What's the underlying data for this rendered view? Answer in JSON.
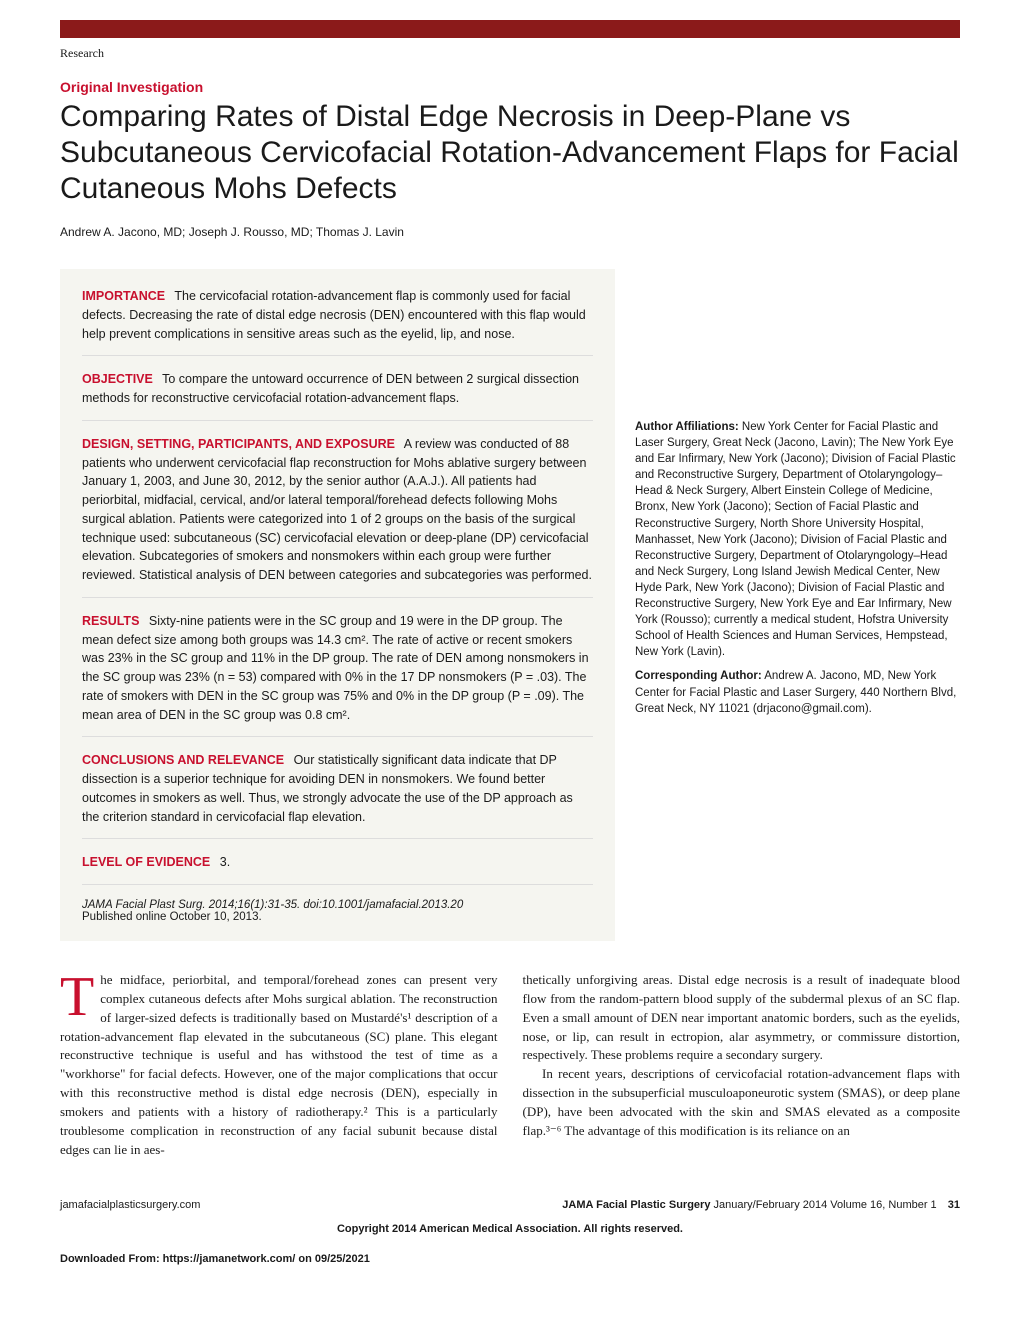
{
  "colors": {
    "accent": "#c8102e",
    "topbar": "#8b1a1a",
    "abstract_bg": "#f5f5f0"
  },
  "header": {
    "section": "Research",
    "investigation": "Original Investigation",
    "title": "Comparing Rates of Distal Edge Necrosis in Deep-Plane vs Subcutaneous Cervicofacial Rotation-Advancement Flaps for Facial Cutaneous Mohs Defects",
    "authors": "Andrew A. Jacono, MD; Joseph J. Rousso, MD; Thomas J. Lavin"
  },
  "abstract": {
    "importance": {
      "label": "IMPORTANCE",
      "text": "The cervicofacial rotation-advancement flap is commonly used for facial defects. Decreasing the rate of distal edge necrosis (DEN) encountered with this flap would help prevent complications in sensitive areas such as the eyelid, lip, and nose."
    },
    "objective": {
      "label": "OBJECTIVE",
      "text": "To compare the untoward occurrence of DEN between 2 surgical dissection methods for reconstructive cervicofacial rotation-advancement flaps."
    },
    "design": {
      "label": "DESIGN, SETTING, PARTICIPANTS, AND EXPOSURE",
      "text": "A review was conducted of 88 patients who underwent cervicofacial flap reconstruction for Mohs ablative surgery between January 1, 2003, and June 30, 2012, by the senior author (A.A.J.). All patients had periorbital, midfacial, cervical, and/or lateral temporal/forehead defects following Mohs surgical ablation. Patients were categorized into 1 of 2 groups on the basis of the surgical technique used: subcutaneous (SC) cervicofacial elevation or deep-plane (DP) cervicofacial elevation. Subcategories of smokers and nonsmokers within each group were further reviewed. Statistical analysis of DEN between categories and subcategories was performed."
    },
    "results": {
      "label": "RESULTS",
      "text": "Sixty-nine patients were in the SC group and 19 were in the DP group. The mean defect size among both groups was 14.3 cm². The rate of active or recent smokers was 23% in the SC group and 11% in the DP group. The rate of DEN among nonsmokers in the SC group was 23% (n = 53) compared with 0% in the 17 DP nonsmokers (P = .03). The rate of smokers with DEN in the SC group was 75% and 0% in the DP group (P = .09). The mean area of DEN in the SC group was 0.8 cm²."
    },
    "conclusions": {
      "label": "CONCLUSIONS AND RELEVANCE",
      "text": "Our statistically significant data indicate that DP dissection is a superior technique for avoiding DEN in nonsmokers. We found better outcomes in smokers as well. Thus, we strongly advocate the use of the DP approach as the criterion standard in cervicofacial flap elevation."
    },
    "evidence": {
      "label": "LEVEL OF EVIDENCE",
      "text": "3."
    },
    "citation": "JAMA Facial Plast Surg. 2014;16(1):31-35. doi:10.1001/jamafacial.2013.20",
    "published": "Published online October 10, 2013."
  },
  "sidebar": {
    "affiliations_label": "Author Affiliations:",
    "affiliations": "New York Center for Facial Plastic and Laser Surgery, Great Neck (Jacono, Lavin); The New York Eye and Ear Infirmary, New York (Jacono); Division of Facial Plastic and Reconstructive Surgery, Department of Otolaryngology–Head & Neck Surgery, Albert Einstein College of Medicine, Bronx, New York (Jacono); Section of Facial Plastic and Reconstructive Surgery, North Shore University Hospital, Manhasset, New York (Jacono); Division of Facial Plastic and Reconstructive Surgery, Department of Otolaryngology–Head and Neck Surgery, Long Island Jewish Medical Center, New Hyde Park, New York (Jacono); Division of Facial Plastic and Reconstructive Surgery, New York Eye and Ear Infirmary, New York (Rousso); currently a medical student, Hofstra University School of Health Sciences and Human Services, Hempstead, New York (Lavin).",
    "corresponding_label": "Corresponding Author:",
    "corresponding": "Andrew A. Jacono, MD, New York Center for Facial Plastic and Laser Surgery, 440 Northern Blvd, Great Neck, NY 11021 (drjacono@gmail.com)."
  },
  "body": {
    "col1_p1": "he midface, periorbital, and temporal/forehead zones can present very complex cutaneous defects after Mohs surgical ablation. The reconstruction of larger-sized defects is traditionally based on Mustardé's¹ description of a rotation-advancement flap elevated in the subcutaneous (SC) plane. This elegant reconstructive technique is useful and has withstood the test of time as a \"workhorse\" for facial defects. However, one of the major complications that occur with this reconstructive method is distal edge necrosis (DEN), especially in smokers and patients with a history of radiotherapy.² This is a particularly troublesome complication in reconstruction of any facial subunit because distal edges can lie in aes-",
    "col2_p1": "thetically unforgiving areas. Distal edge necrosis is a result of inadequate blood flow from the random-pattern blood supply of the subdermal plexus of an SC flap. Even a small amount of DEN near important anatomic borders, such as the eyelids, nose, or lip, can result in ectropion, alar asymmetry, or commissure distortion, respectively. These problems require a secondary surgery.",
    "col2_p2": "In recent years, descriptions of cervicofacial rotation-advancement flaps with dissection in the subsuperficial musculoaponeurotic system (SMAS), or deep plane (DP), have been advocated with the skin and SMAS elevated as a composite flap.³⁻⁶ The advantage of this modification is its reliance on an"
  },
  "footer": {
    "left": "jamafacialplasticsurgery.com",
    "journal": "JAMA Facial Plastic Surgery",
    "issue": "January/February 2014   Volume 16, Number 1",
    "page": "31",
    "copyright": "Copyright 2014 American Medical Association. All rights reserved.",
    "download": "Downloaded From: https://jamanetwork.com/ on 09/25/2021"
  }
}
